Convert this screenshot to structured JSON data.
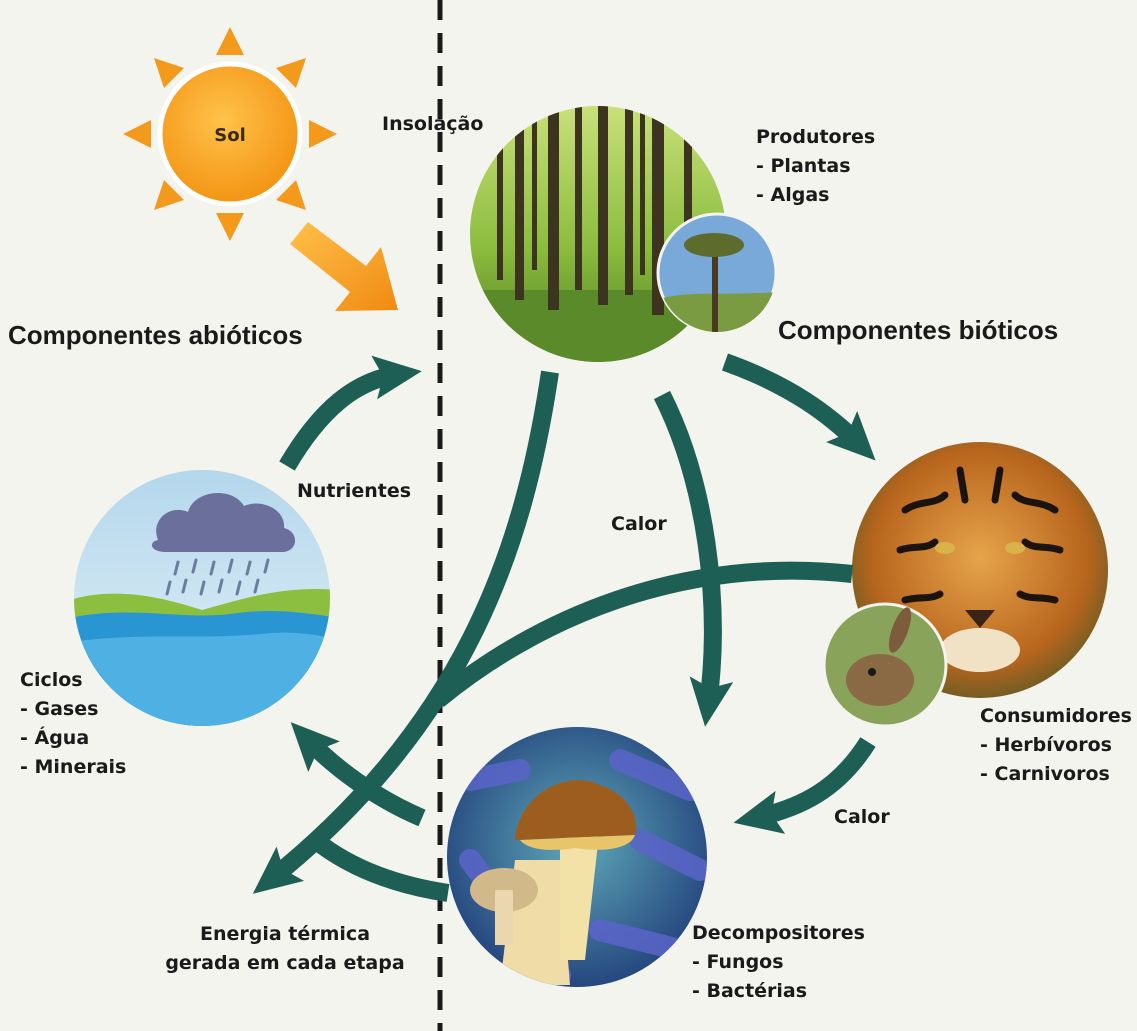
{
  "sun": {
    "label": "Sol",
    "color": "#f7a21b"
  },
  "labels": {
    "insolation": "Insolação",
    "abiotic_title": "Componentes abióticos",
    "biotic_title": "Componentes bióticos",
    "nutrients": "Nutrientes",
    "heat_center": "Calor",
    "heat_right": "Calor",
    "thermal_line1": "Energia térmica",
    "thermal_line2": "gerada em cada etapa"
  },
  "producers": {
    "title": "Produtores",
    "items": [
      "- Plantas",
      "- Algas"
    ]
  },
  "consumers": {
    "title": "Consumidores",
    "items": [
      "- Herbívoros",
      "- Carnivoros"
    ]
  },
  "decomposers": {
    "title": "Decompositores",
    "items": [
      "- Fungos",
      "- Bactérias"
    ]
  },
  "cycles": {
    "title": "Ciclos",
    "items": [
      "- Gases",
      "- Água",
      "- Minerais"
    ]
  },
  "colors": {
    "arrow": "#1d5f55",
    "sun": "#f7a21b",
    "sun_ray": "#f39a1c",
    "background": "#f4f4ef"
  },
  "icons": [
    "sun-icon",
    "forest-photo",
    "tiger-photo",
    "rabbit-photo",
    "mushroom-photo",
    "rain-cloud-icon"
  ]
}
